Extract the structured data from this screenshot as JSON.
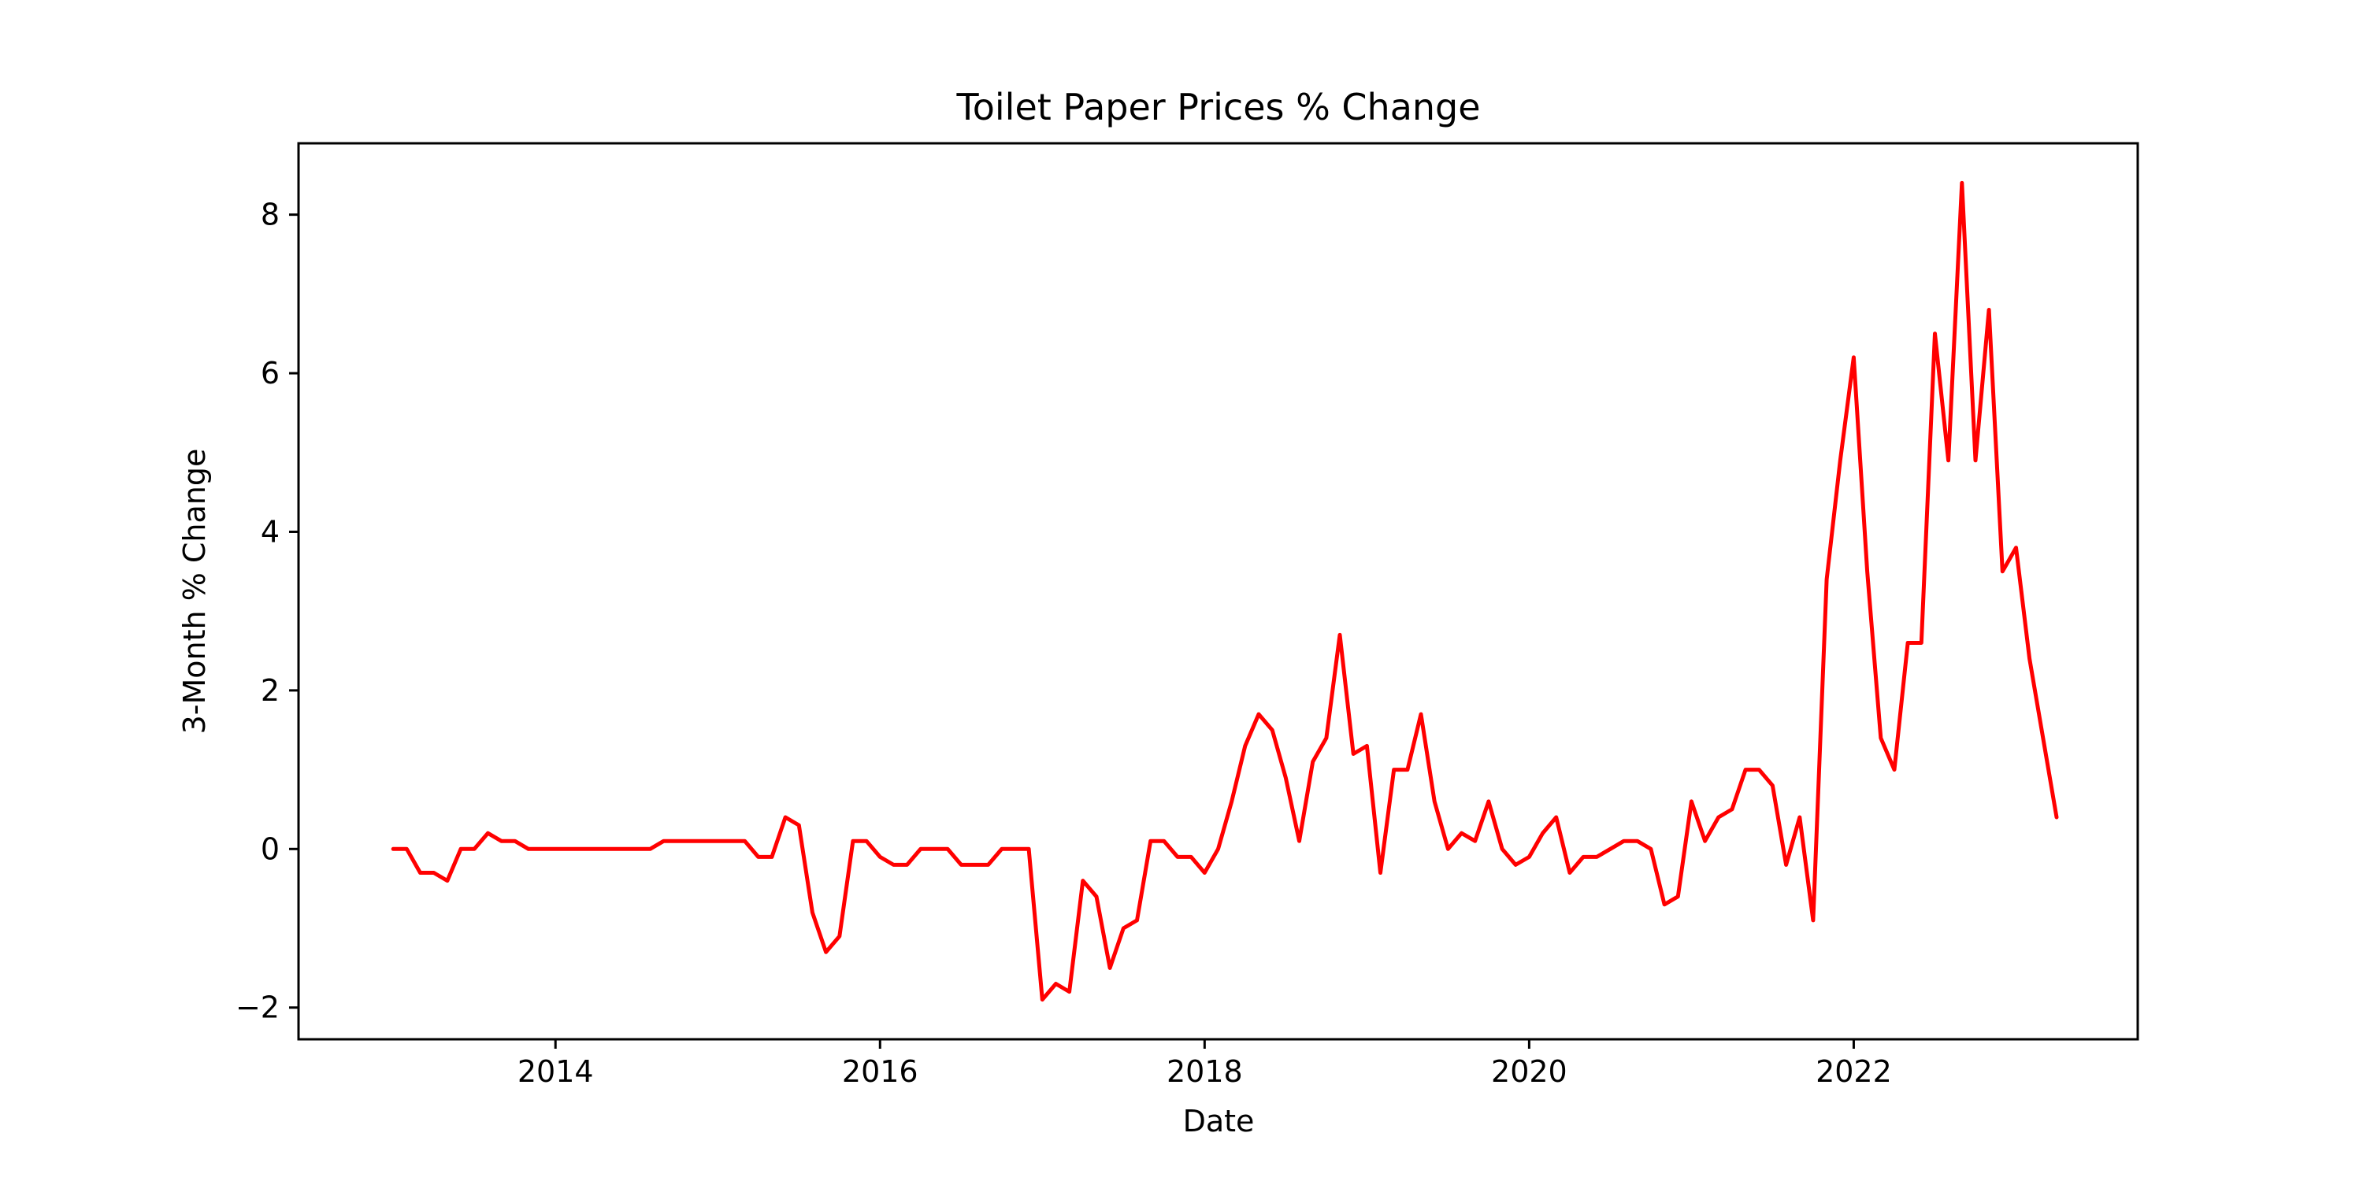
{
  "chart_data": {
    "type": "line",
    "title": "Toilet Paper Prices % Change",
    "xlabel": "Date",
    "ylabel": "3-Month % Change",
    "xlim": [
      "2012-06-01",
      "2023-10-01"
    ],
    "ylim": [
      -2.4,
      8.9
    ],
    "x_ticks": [
      {
        "date": "2014-01-01",
        "label": "2014"
      },
      {
        "date": "2016-01-01",
        "label": "2016"
      },
      {
        "date": "2018-01-01",
        "label": "2018"
      },
      {
        "date": "2020-01-01",
        "label": "2020"
      },
      {
        "date": "2022-01-01",
        "label": "2022"
      }
    ],
    "y_ticks": [
      {
        "value": -2,
        "label": "−2"
      },
      {
        "value": 0,
        "label": "0"
      },
      {
        "value": 2,
        "label": "2"
      },
      {
        "value": 4,
        "label": "4"
      },
      {
        "value": 6,
        "label": "6"
      },
      {
        "value": 8,
        "label": "8"
      }
    ],
    "grid": false,
    "color": "#ff0000",
    "x": [
      "2013-01",
      "2013-02",
      "2013-03",
      "2013-04",
      "2013-05",
      "2013-06",
      "2013-07",
      "2013-08",
      "2013-09",
      "2013-10",
      "2013-11",
      "2013-12",
      "2014-01",
      "2014-02",
      "2014-03",
      "2014-04",
      "2014-05",
      "2014-06",
      "2014-07",
      "2014-08",
      "2014-09",
      "2014-10",
      "2014-11",
      "2014-12",
      "2015-01",
      "2015-02",
      "2015-03",
      "2015-04",
      "2015-05",
      "2015-06",
      "2015-07",
      "2015-08",
      "2015-09",
      "2015-10",
      "2015-11",
      "2015-12",
      "2016-01",
      "2016-02",
      "2016-03",
      "2016-04",
      "2016-05",
      "2016-06",
      "2016-07",
      "2016-08",
      "2016-09",
      "2016-10",
      "2016-11",
      "2016-12",
      "2017-01",
      "2017-02",
      "2017-03",
      "2017-04",
      "2017-05",
      "2017-06",
      "2017-07",
      "2017-08",
      "2017-09",
      "2017-10",
      "2017-11",
      "2017-12",
      "2018-01",
      "2018-02",
      "2018-03",
      "2018-04",
      "2018-05",
      "2018-06",
      "2018-07",
      "2018-08",
      "2018-09",
      "2018-10",
      "2018-11",
      "2018-12",
      "2019-01",
      "2019-02",
      "2019-03",
      "2019-04",
      "2019-05",
      "2019-06",
      "2019-07",
      "2019-08",
      "2019-09",
      "2019-10",
      "2019-11",
      "2019-12",
      "2020-01",
      "2020-02",
      "2020-03",
      "2020-04",
      "2020-05",
      "2020-06",
      "2020-07",
      "2020-08",
      "2020-09",
      "2020-10",
      "2020-11",
      "2020-12",
      "2021-01",
      "2021-02",
      "2021-03",
      "2021-04",
      "2021-05",
      "2021-06",
      "2021-07",
      "2021-08",
      "2021-09",
      "2021-10",
      "2021-11",
      "2021-12",
      "2022-01",
      "2022-02",
      "2022-03",
      "2022-04",
      "2022-05",
      "2022-06",
      "2022-07",
      "2022-08",
      "2022-09",
      "2022-10",
      "2022-11",
      "2022-12",
      "2023-01",
      "2023-02",
      "2023-03",
      "2023-04"
    ],
    "y": [
      0,
      0,
      -0.3,
      -0.3,
      -0.4,
      0,
      0,
      0.2,
      0.1,
      0.1,
      0,
      0,
      0,
      0,
      0,
      0,
      0,
      0,
      0,
      0,
      0.1,
      0.1,
      0.1,
      0.1,
      0.1,
      0.1,
      0.1,
      -0.1,
      -0.1,
      0.4,
      0.3,
      -0.8,
      -1.3,
      -1.1,
      0.1,
      0.1,
      -0.1,
      -0.2,
      -0.2,
      0,
      0,
      0,
      -0.2,
      -0.2,
      -0.2,
      0,
      0,
      0,
      -1.9,
      -1.7,
      -1.8,
      -0.4,
      -0.6,
      -1.5,
      -1.0,
      -0.9,
      0.1,
      0.1,
      -0.1,
      -0.1,
      -0.3,
      0,
      0.6,
      1.3,
      1.7,
      1.5,
      0.9,
      0.1,
      1.1,
      1.4,
      2.7,
      1.2,
      1.3,
      -0.3,
      1.0,
      1.0,
      1.7,
      0.6,
      0,
      0.2,
      0.1,
      0.6,
      0,
      -0.2,
      -0.1,
      0.2,
      0.4,
      -0.3,
      -0.1,
      -0.1,
      0,
      0.1,
      0.1,
      0,
      -0.7,
      -0.6,
      0.6,
      0.1,
      0.4,
      0.5,
      1.0,
      1.0,
      0.8,
      -0.2,
      0.4,
      -0.9,
      3.4,
      4.9,
      6.2,
      3.5,
      1.4,
      1.0,
      2.6,
      2.6,
      6.5,
      4.9,
      8.4,
      4.9,
      6.8,
      3.5,
      3.8,
      2.4,
      1.4,
      0.4
    ]
  }
}
